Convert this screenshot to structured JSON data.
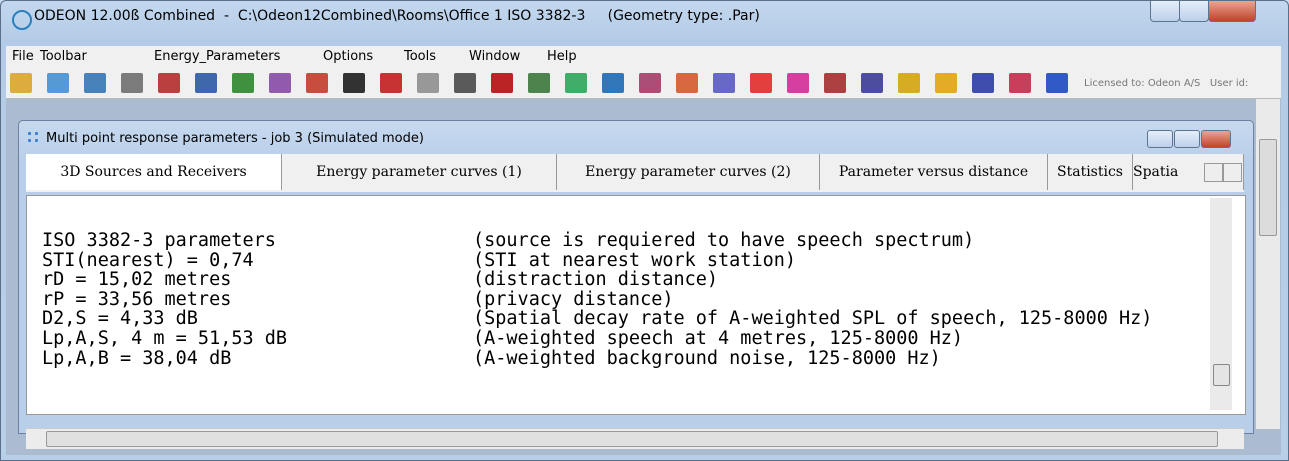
{
  "window": {
    "title": "ODEON 12.00ß Combined  -  C:\\Odeon12Combined\\Rooms\\Office 1 ISO 3382-3     (Geometry type: .Par)"
  },
  "menu": [
    "File",
    "Toolbar",
    "Energy_Parameters",
    "Options",
    "Tools",
    "Window",
    "Help"
  ],
  "toolbar": {
    "license": "Licensed to: Odeon A/S   User id:"
  },
  "child_window": {
    "title": "Multi point response parameters - job 3 (Simulated mode)",
    "tabs": [
      "3D Sources and Receivers",
      "Energy parameter curves (1)",
      "Energy parameter curves (2)",
      "Parameter versus distance",
      "Statistics",
      "Spatia"
    ],
    "lines": [
      [
        "ISO 3382-3 parameters",
        "(source is requiered to have speech spectrum)"
      ],
      [
        "STI(nearest) = 0,74",
        "(STI at nearest work station)"
      ],
      [
        "rD = 15,02 metres",
        "(distraction distance)"
      ],
      [
        "rP = 33,56 metres",
        "(privacy distance)"
      ],
      [
        "D2,S = 4,33 dB",
        "(Spatial decay rate of A-weighted SPL of speech, 125-8000 Hz)"
      ],
      [
        "Lp,A,S, 4 m = 51,53 dB",
        "(A-weighted speech at 4 metres, 125-8000 Hz)"
      ],
      [
        "Lp,A,B = 38,04 dB",
        "(A-weighted background noise, 125-8000 Hz)"
      ]
    ]
  }
}
